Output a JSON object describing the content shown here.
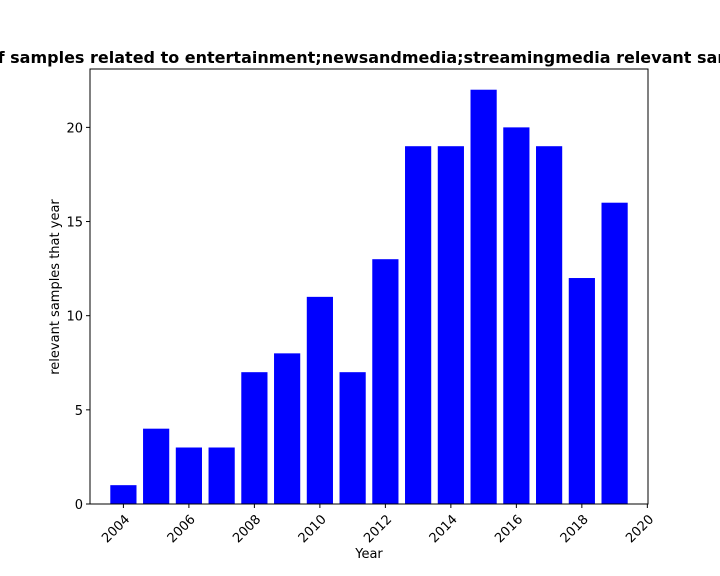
{
  "chart_data": {
    "type": "bar",
    "title": "Percentage of samples related to entertainment;newsandmedia;streamingmedia relevant samples that year",
    "xlabel": "Year",
    "ylabel": "relevant samples that year",
    "categories": [
      2004,
      2005,
      2006,
      2007,
      2008,
      2009,
      2010,
      2011,
      2012,
      2013,
      2014,
      2015,
      2016,
      2017,
      2018,
      2019
    ],
    "values": [
      1,
      4,
      3,
      3,
      7,
      8,
      11,
      7,
      13,
      19,
      19,
      22,
      20,
      19,
      12,
      16
    ],
    "xlim": [
      2002.98,
      2020.02
    ],
    "ylim": [
      0,
      23.1
    ],
    "xticks": [
      "2004",
      "2006",
      "2008",
      "2010",
      "2012",
      "2014",
      "2016",
      "2018",
      "2020"
    ],
    "yticks": [
      "0",
      "5",
      "10",
      "15",
      "20"
    ],
    "bar_color": "#0000ff",
    "grid": false,
    "legend": "none"
  }
}
